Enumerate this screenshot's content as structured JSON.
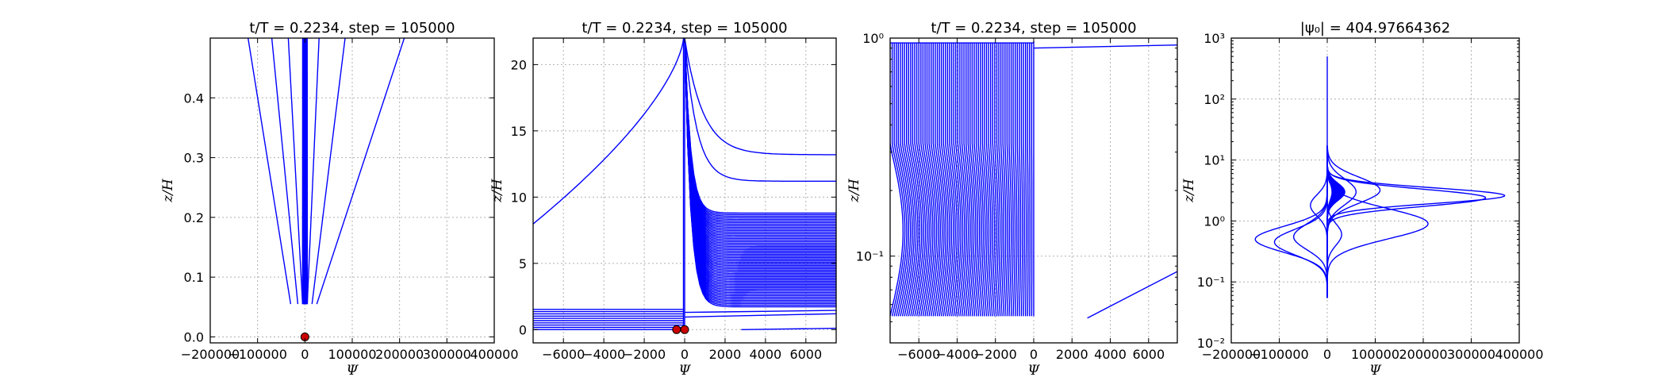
{
  "figure": {
    "panels": [
      {
        "id": "p1",
        "title": "t/T = 0.2234, step = 105000",
        "xlabel": "Ψ",
        "ylabel": "z/H",
        "xscale": "linear",
        "yscale": "linear",
        "xlim": [
          -200000,
          400000
        ],
        "ylim": [
          -0.01,
          0.5
        ],
        "xticks": [
          -200000,
          -100000,
          0,
          100000,
          200000,
          300000,
          400000
        ],
        "xticklabels": [
          "−200000",
          "−100000",
          "0",
          "100000",
          "200000",
          "300000",
          "400000"
        ],
        "yticks": [
          0.0,
          0.1,
          0.2,
          0.3,
          0.4
        ],
        "yticklabels": [
          "0.0",
          "0.1",
          "0.2",
          "0.3",
          "0.4"
        ]
      },
      {
        "id": "p2",
        "title": "t/T = 0.2234, step = 105000",
        "xlabel": "Ψ",
        "ylabel": "z/H",
        "xscale": "linear",
        "yscale": "linear",
        "xlim": [
          -7500,
          7500
        ],
        "ylim": [
          -1,
          22
        ],
        "xticks": [
          -6000,
          -4000,
          -2000,
          0,
          2000,
          4000,
          6000
        ],
        "xticklabels": [
          "−6000",
          "−4000",
          "−2000",
          "0",
          "2000",
          "4000",
          "6000"
        ],
        "yticks": [
          0,
          5,
          10,
          15,
          20
        ],
        "yticklabels": [
          "0",
          "5",
          "10",
          "15",
          "20"
        ]
      },
      {
        "id": "p3",
        "title": "t/T = 0.2234, step = 105000",
        "xlabel": "Ψ",
        "ylabel": "z/H",
        "xscale": "linear",
        "yscale": "log",
        "xlim": [
          -7500,
          7500
        ],
        "ylim": [
          0.04,
          1
        ],
        "xticks": [
          -6000,
          -4000,
          -2000,
          0,
          2000,
          4000,
          6000
        ],
        "xticklabels": [
          "−6000",
          "−4000",
          "−2000",
          "0",
          "2000",
          "4000",
          "6000"
        ],
        "yticks": [
          0.1,
          1
        ],
        "yticklabels": [
          "10⁻¹",
          "10⁰"
        ]
      },
      {
        "id": "p4",
        "title": "|ψ₀| = 404.97664362",
        "xlabel": "Ψ",
        "ylabel": "z/H",
        "xscale": "linear",
        "yscale": "log",
        "xlim": [
          -200000,
          400000
        ],
        "ylim": [
          0.01,
          1000
        ],
        "xticks": [
          -200000,
          -100000,
          0,
          100000,
          200000,
          300000,
          400000
        ],
        "xticklabels": [
          "−200000",
          "−100000",
          "0",
          "100000",
          "200000",
          "300000",
          "400000"
        ],
        "yticks": [
          0.01,
          0.1,
          1,
          10,
          100,
          1000
        ],
        "yticklabels": [
          "10⁻²",
          "10⁻¹",
          "10⁰",
          "10¹",
          "10²",
          "10³"
        ]
      }
    ]
  },
  "chart_data": [
    {
      "type": "line",
      "title": "t/T = 0.2234, step = 105000",
      "xlabel": "Ψ",
      "ylabel": "z/H",
      "xlim": [
        -200000,
        400000
      ],
      "ylim": [
        -0.01,
        0.5
      ],
      "grid": true,
      "series_color": "#0000ff",
      "lines": [
        {
          "z_bottom": 0.055,
          "psi_bottom": -30000,
          "z_top": 0.5,
          "psi_top": -120000
        },
        {
          "z_bottom": 0.055,
          "psi_bottom": -15000,
          "z_top": 0.5,
          "psi_top": -70000
        },
        {
          "z_bottom": 0.055,
          "psi_bottom": -5000,
          "z_top": 0.5,
          "psi_top": -35000
        },
        {
          "z_bottom": 0.055,
          "psi_bottom": 5000,
          "z_top": 0.5,
          "psi_top": 30000
        },
        {
          "z_bottom": 0.055,
          "psi_bottom": 15000,
          "z_top": 0.5,
          "psi_top": 85000
        },
        {
          "z_bottom": 0.055,
          "psi_bottom": 25000,
          "z_top": 0.5,
          "psi_top": 210000
        }
      ],
      "markers": [
        {
          "x": 0,
          "y": 0.0,
          "color": "#cc0000"
        }
      ]
    },
    {
      "type": "line",
      "title": "t/T = 0.2234, step = 105000",
      "xlabel": "Ψ",
      "ylabel": "z/H",
      "xlim": [
        -7500,
        7500
      ],
      "ylim": [
        -1,
        22
      ],
      "grid": true,
      "series_color": "#0000ff",
      "markers": [
        {
          "x": -400,
          "y": 0.0,
          "color": "#cc0000"
        },
        {
          "x": 0,
          "y": 0.0,
          "color": "#cc0000"
        }
      ]
    },
    {
      "type": "line",
      "title": "t/T = 0.2234, step = 105000",
      "xlabel": "Ψ",
      "ylabel": "z/H",
      "yscale": "log",
      "xlim": [
        -7500,
        7500
      ],
      "ylim": [
        0.04,
        1
      ],
      "grid": true,
      "series_color": "#0000ff"
    },
    {
      "type": "line",
      "title": "|ψ₀| = 404.97664362",
      "xlabel": "Ψ",
      "ylabel": "z/H",
      "yscale": "log",
      "xlim": [
        -200000,
        400000
      ],
      "ylim": [
        0.01,
        1000
      ],
      "grid": true,
      "series_color": "#0000ff"
    }
  ]
}
